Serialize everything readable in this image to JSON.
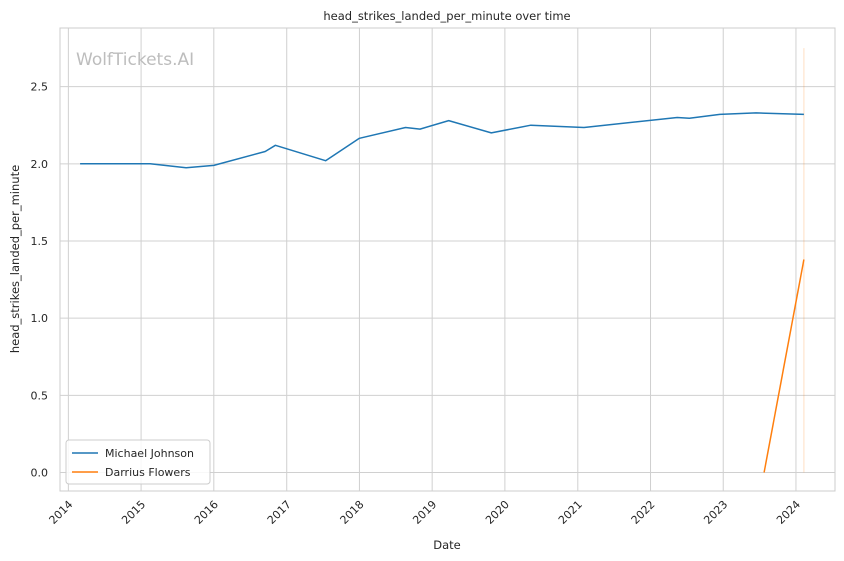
{
  "watermark": "WolfTickets.AI",
  "chart_data": {
    "type": "line",
    "title": "head_strikes_landed_per_minute over time",
    "xlabel": "Date",
    "ylabel": "head_strikes_landed_per_minute",
    "x_ticks": [
      "2014",
      "2015",
      "2016",
      "2017",
      "2018",
      "2019",
      "2020",
      "2021",
      "2022",
      "2023",
      "2024"
    ],
    "y_ticks": [
      "0.0",
      "0.5",
      "1.0",
      "1.5",
      "2.0",
      "2.5"
    ],
    "xlim": [
      "2013-11-20",
      "2024-07-15"
    ],
    "ylim": [
      -0.12,
      2.88
    ],
    "grid": true,
    "legend_position": "lower-left",
    "series": [
      {
        "name": "Michael Johnson",
        "color": "#1f77b4",
        "points": [
          [
            "2014-03-01",
            2.0
          ],
          [
            "2015-02-15",
            2.0
          ],
          [
            "2015-08-15",
            1.975
          ],
          [
            "2016-01-01",
            1.99
          ],
          [
            "2016-09-15",
            2.08
          ],
          [
            "2016-11-05",
            2.12
          ],
          [
            "2017-07-15",
            2.02
          ],
          [
            "2018-01-01",
            2.165
          ],
          [
            "2018-08-20",
            2.235
          ],
          [
            "2018-11-01",
            2.225
          ],
          [
            "2019-03-25",
            2.28
          ],
          [
            "2019-10-25",
            2.2
          ],
          [
            "2020-05-10",
            2.25
          ],
          [
            "2021-02-01",
            2.235
          ],
          [
            "2022-05-15",
            2.3
          ],
          [
            "2022-07-15",
            2.295
          ],
          [
            "2022-12-15",
            2.32
          ],
          [
            "2023-06-15",
            2.33
          ],
          [
            "2024-02-10",
            2.32
          ]
        ]
      },
      {
        "name": "Darrius Flowers",
        "color": "#ff7f0e",
        "points": [
          [
            "2023-07-25",
            0.0
          ],
          [
            "2024-02-10",
            1.38
          ]
        ]
      }
    ],
    "annotations": [
      {
        "type": "vline",
        "x": "2024-02-10",
        "color": "#ff7f0e"
      }
    ]
  }
}
